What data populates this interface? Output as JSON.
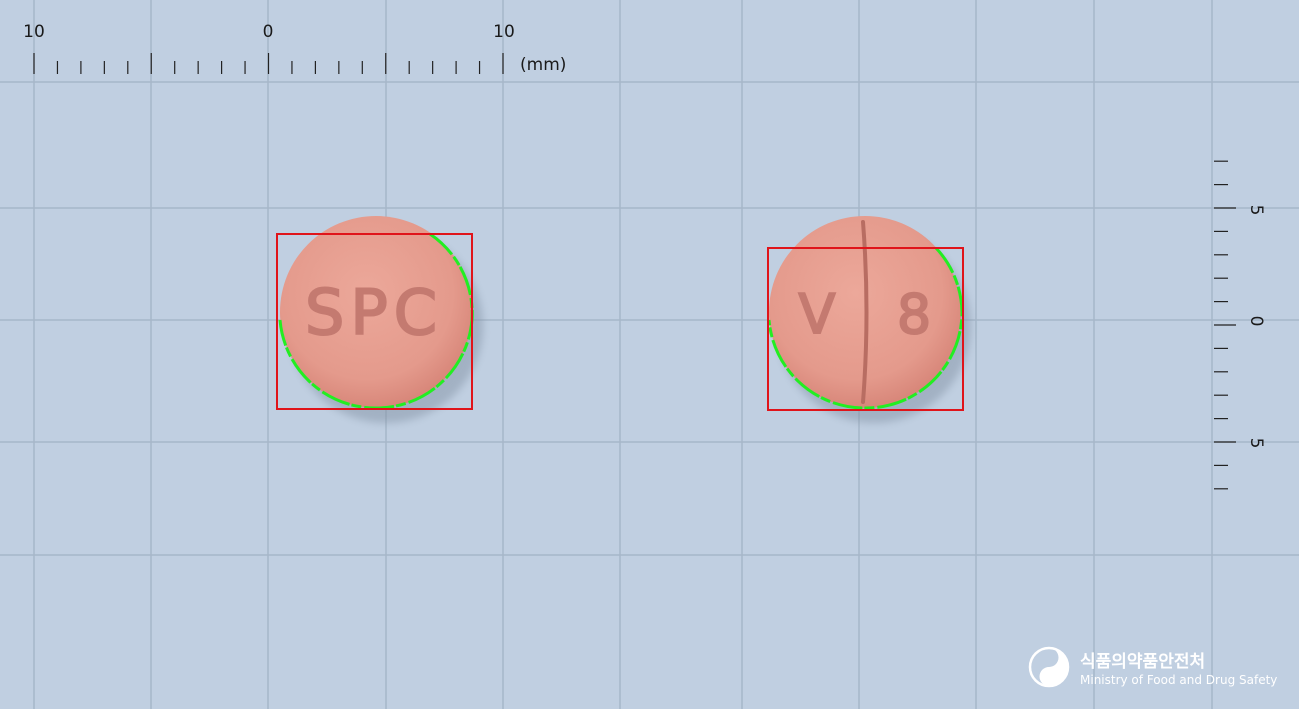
{
  "ruler_top": {
    "labels": [
      "10",
      "0",
      "10"
    ],
    "unit": "(mm)"
  },
  "ruler_right": {
    "labels": [
      "5",
      "0",
      "5"
    ]
  },
  "tablets": {
    "front": {
      "imprint": "SPC"
    },
    "back": {
      "imprint_left": "V",
      "imprint_right": "8"
    }
  },
  "logo": {
    "korean": "식품의약품안전처",
    "english": "Ministry of Food and Drug Safety"
  },
  "colors": {
    "background": "#c0cfe1",
    "grid": "#a6b7c9",
    "tablet": "#e59d8f",
    "bounding_box": "#e0141a",
    "contour": "#22ee22"
  }
}
